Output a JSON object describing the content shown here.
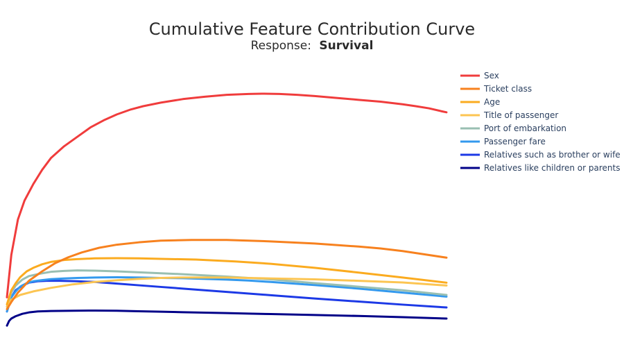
{
  "chart_data": {
    "type": "line",
    "title": "Cumulative Feature Contribution Curve",
    "subtitle_prefix": "Response:",
    "subtitle_value": "Survival",
    "xlabel": "",
    "ylabel": "",
    "grid": false,
    "show_axes": false,
    "legend_position": "top-right",
    "x_range": [
      0,
      1
    ],
    "y_range": [
      0,
      1
    ],
    "series": [
      {
        "name": "Sex",
        "color": "#f03c3c",
        "x": [
          0,
          0.005,
          0.01,
          0.018,
          0.025,
          0.04,
          0.06,
          0.08,
          0.1,
          0.13,
          0.16,
          0.19,
          0.22,
          0.25,
          0.28,
          0.31,
          0.35,
          0.4,
          0.45,
          0.5,
          0.55,
          0.58,
          0.62,
          0.66,
          0.7,
          0.75,
          0.8,
          0.85,
          0.9,
          0.93,
          0.96,
          0.99,
          1
        ],
        "y": [
          0.09,
          0.18,
          0.27,
          0.35,
          0.42,
          0.5,
          0.57,
          0.63,
          0.68,
          0.73,
          0.77,
          0.81,
          0.84,
          0.865,
          0.885,
          0.9,
          0.915,
          0.93,
          0.94,
          0.948,
          0.952,
          0.953,
          0.952,
          0.948,
          0.943,
          0.935,
          0.927,
          0.919,
          0.908,
          0.9,
          0.891,
          0.878,
          0.874
        ]
      },
      {
        "name": "Ticket class",
        "color": "#f7811e",
        "x": [
          0,
          0.01,
          0.025,
          0.05,
          0.08,
          0.11,
          0.14,
          0.17,
          0.21,
          0.25,
          0.3,
          0.35,
          0.42,
          0.5,
          0.6,
          0.7,
          0.8,
          0.85,
          0.9,
          0.95,
          1
        ],
        "y": [
          0.04,
          0.07,
          0.11,
          0.16,
          0.2,
          0.235,
          0.26,
          0.28,
          0.3,
          0.313,
          0.323,
          0.33,
          0.333,
          0.333,
          0.327,
          0.318,
          0.305,
          0.297,
          0.286,
          0.272,
          0.258
        ]
      },
      {
        "name": "Age",
        "color": "#fbab1f",
        "x": [
          0,
          0.005,
          0.01,
          0.02,
          0.03,
          0.045,
          0.06,
          0.08,
          0.1,
          0.13,
          0.16,
          0.2,
          0.25,
          0.3,
          0.35,
          0.43,
          0.52,
          0.6,
          0.7,
          0.8,
          0.9,
          1
        ],
        "y": [
          0.06,
          0.09,
          0.12,
          0.15,
          0.175,
          0.2,
          0.215,
          0.23,
          0.24,
          0.248,
          0.252,
          0.255,
          0.256,
          0.255,
          0.253,
          0.25,
          0.242,
          0.232,
          0.215,
          0.195,
          0.174,
          0.152
        ]
      },
      {
        "name": "Title of passenger",
        "color": "#fcc552",
        "x": [
          0,
          0.01,
          0.03,
          0.06,
          0.1,
          0.15,
          0.2,
          0.25,
          0.3,
          0.35,
          0.4,
          0.5,
          0.6,
          0.7,
          0.8,
          0.9,
          1
        ],
        "y": [
          0.05,
          0.08,
          0.1,
          0.115,
          0.13,
          0.145,
          0.155,
          0.162,
          0.168,
          0.172,
          0.174,
          0.174,
          0.17,
          0.166,
          0.16,
          0.153,
          0.14
        ]
      },
      {
        "name": "Port of embarkation",
        "color": "#99bfb2",
        "x": [
          0,
          0.005,
          0.01,
          0.02,
          0.035,
          0.05,
          0.075,
          0.1,
          0.13,
          0.16,
          0.2,
          0.25,
          0.3,
          0.35,
          0.4,
          0.5,
          0.6,
          0.7,
          0.8,
          0.9,
          1
        ],
        "y": [
          0.05,
          0.08,
          0.11,
          0.14,
          0.165,
          0.18,
          0.19,
          0.198,
          0.202,
          0.204,
          0.203,
          0.2,
          0.196,
          0.192,
          0.188,
          0.178,
          0.166,
          0.15,
          0.135,
          0.12,
          0.1
        ]
      },
      {
        "name": "Passenger fare",
        "color": "#3399ee",
        "x": [
          0,
          0.005,
          0.01,
          0.02,
          0.03,
          0.045,
          0.06,
          0.08,
          0.1,
          0.13,
          0.16,
          0.2,
          0.25,
          0.3,
          0.35,
          0.4,
          0.45,
          0.5,
          0.55,
          0.6,
          0.7,
          0.8,
          0.9,
          1
        ],
        "y": [
          0.03,
          0.06,
          0.09,
          0.115,
          0.135,
          0.15,
          0.158,
          0.163,
          0.167,
          0.17,
          0.172,
          0.174,
          0.175,
          0.174,
          0.172,
          0.171,
          0.168,
          0.165,
          0.161,
          0.155,
          0.142,
          0.127,
          0.11,
          0.093
        ]
      },
      {
        "name": "Relatives such as brother or wife",
        "color": "#1c39e6",
        "x": [
          0,
          0.005,
          0.01,
          0.02,
          0.035,
          0.05,
          0.07,
          0.09,
          0.12,
          0.16,
          0.2,
          0.25,
          0.3,
          0.35,
          0.4,
          0.45,
          0.5,
          0.55,
          0.6,
          0.7,
          0.8,
          0.9,
          1
        ],
        "y": [
          0.03,
          0.06,
          0.09,
          0.12,
          0.14,
          0.152,
          0.158,
          0.16,
          0.16,
          0.158,
          0.155,
          0.148,
          0.141,
          0.134,
          0.127,
          0.12,
          0.113,
          0.106,
          0.099,
          0.085,
          0.072,
          0.059,
          0.047
        ]
      },
      {
        "name": "Relatives like children or parents",
        "color": "#000088",
        "x": [
          0,
          0.005,
          0.01,
          0.02,
          0.035,
          0.05,
          0.07,
          0.1,
          0.15,
          0.2,
          0.25,
          0.3,
          0.35,
          0.4,
          0.45,
          0.5,
          0.55,
          0.6,
          0.7,
          0.8,
          0.9,
          1
        ],
        "y": [
          -0.03,
          -0.01,
          0.0,
          0.01,
          0.02,
          0.026,
          0.03,
          0.032,
          0.033,
          0.034,
          0.033,
          0.031,
          0.029,
          0.027,
          0.025,
          0.023,
          0.021,
          0.019,
          0.015,
          0.011,
          0.006,
          0.0
        ]
      }
    ]
  }
}
